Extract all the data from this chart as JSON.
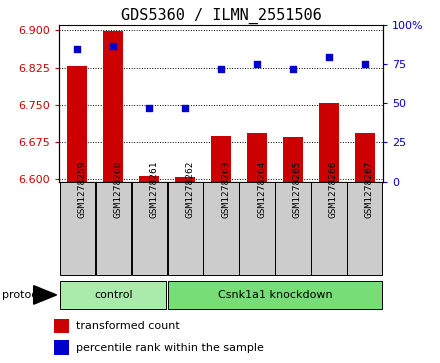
{
  "title": "GDS5360 / ILMN_2551506",
  "samples": [
    "GSM1278259",
    "GSM1278260",
    "GSM1278261",
    "GSM1278262",
    "GSM1278263",
    "GSM1278264",
    "GSM1278265",
    "GSM1278266",
    "GSM1278267"
  ],
  "transformed_count": [
    6.828,
    6.898,
    6.607,
    6.604,
    6.686,
    6.692,
    6.684,
    6.754,
    6.692
  ],
  "percentile_rank": [
    85,
    87,
    47,
    47,
    72,
    75,
    72,
    80,
    75
  ],
  "ylim_left": [
    6.595,
    6.91
  ],
  "ylim_right": [
    0,
    100
  ],
  "yticks_left": [
    6.6,
    6.675,
    6.75,
    6.825,
    6.9
  ],
  "yticks_right": [
    0,
    25,
    50,
    75,
    100
  ],
  "bar_color": "#cc0000",
  "dot_color": "#0000cc",
  "bar_bottom": 6.595,
  "background_color": "#ffffff",
  "tick_color_left": "#cc0000",
  "tick_color_right": "#0000cc",
  "title_fontsize": 11,
  "tick_fontsize": 8,
  "dot_size": 22,
  "bar_width": 0.55,
  "control_count": 3,
  "green_color": "#77dd77",
  "gray_color": "#cccccc"
}
